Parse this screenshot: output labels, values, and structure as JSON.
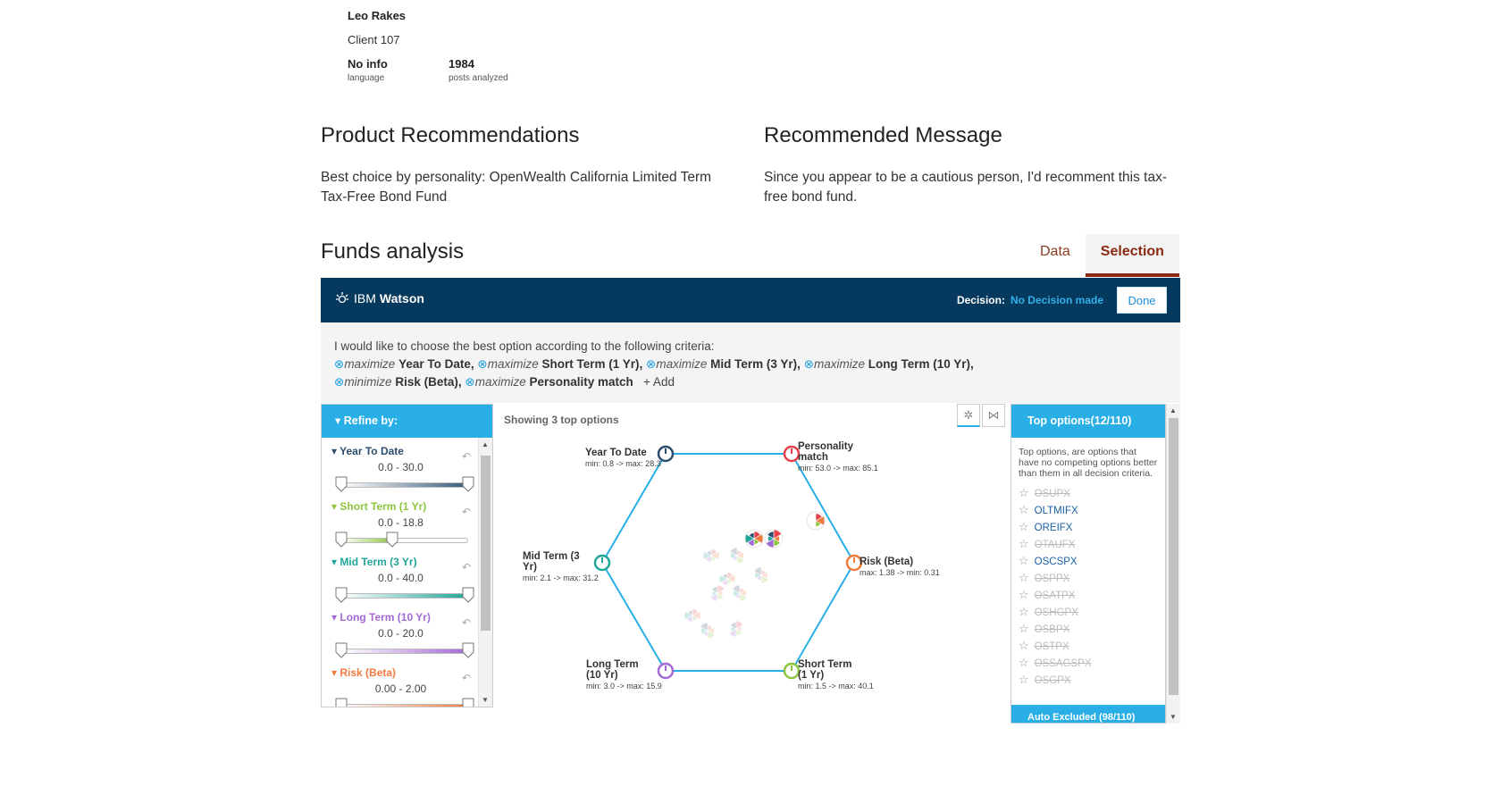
{
  "profile": {
    "name": "Leo Rakes",
    "client": "Client 107",
    "stats": [
      {
        "value": "No info",
        "label": "language"
      },
      {
        "value": "1984",
        "label": "posts analyzed"
      }
    ]
  },
  "product": {
    "title": "Product Recommendations",
    "text": "Best choice by personality: OpenWealth California Limited Term Tax-Free Bond Fund"
  },
  "message": {
    "title": "Recommended Message",
    "text": "Since you appear to be a cautious person, I'd recomment this tax-free bond fund."
  },
  "funds": {
    "title": "Funds analysis",
    "tabs": [
      {
        "label": "Data",
        "active": false
      },
      {
        "label": "Selection",
        "active": true
      }
    ]
  },
  "watson": {
    "logo_ibm": "IBM",
    "logo_watson": "Watson",
    "decision_label": "Decision:",
    "decision_value": "No Decision made",
    "done_label": "Done"
  },
  "criteria": {
    "intro": "I would like to choose the best option according to the following criteria:",
    "x_symbol": "⊗",
    "items": [
      {
        "verb": "maximize",
        "name": "Year To Date,"
      },
      {
        "verb": "maximize",
        "name": "Short Term (1 Yr),"
      },
      {
        "verb": "maximize",
        "name": "Mid Term (3 Yr),"
      },
      {
        "verb": "maximize",
        "name": "Long Term (10 Yr),"
      },
      {
        "verb": "minimize",
        "name": "Risk (Beta),"
      },
      {
        "verb": "maximize",
        "name": "Personality match"
      }
    ],
    "add_label": "+ Add"
  },
  "refine": {
    "title": "Refine by:",
    "sliders": [
      {
        "label": "Year To Date",
        "range": "0.0 - 30.0",
        "color": "#3a5b7a",
        "low": 0.0,
        "high": 1.0
      },
      {
        "label": "Short Term (1 Yr)",
        "range": "0.0 - 18.8",
        "color": "#8cc63f",
        "low": 0.0,
        "high": 0.4
      },
      {
        "label": "Mid Term (3 Yr)",
        "range": "0.0 - 40.0",
        "color": "#21a599",
        "low": 0.0,
        "high": 1.0
      },
      {
        "label": "Long Term (10 Yr)",
        "range": "0.0 - 20.0",
        "color": "#a569d6",
        "low": 0.0,
        "high": 1.0
      },
      {
        "label": "Risk (Beta)",
        "range": "0.00 - 2.00",
        "color": "#f07b3f",
        "low": 0.0,
        "high": 1.0
      }
    ]
  },
  "center": {
    "showing": "Showing 3 top options",
    "axes": [
      {
        "name_lines": [
          "Year To Date"
        ],
        "range": "min: 0.8 -> max: 28.3",
        "color": "#2d4d6d"
      },
      {
        "name_lines": [
          "Personality",
          "match"
        ],
        "range": "min: 53.0 -> max: 85.1",
        "color": "#e6404a"
      },
      {
        "name_lines": [
          "Risk (Beta)"
        ],
        "range": "max: 1.38 -> min: 0.31",
        "color": "#f07b3f"
      },
      {
        "name_lines": [
          "Short Term",
          "(1 Yr)"
        ],
        "range": "min: 1.5 -> max: 40.1",
        "color": "#8cc63f"
      },
      {
        "name_lines": [
          "Long Term",
          "(10 Yr)"
        ],
        "range": "min: 3.0 -> max: 15.9",
        "color": "#a569d6"
      },
      {
        "name_lines": [
          "Mid Term (3",
          "Yr)"
        ],
        "range": "min: 2.1 -> max: 31.2",
        "color": "#21a599"
      }
    ]
  },
  "top_options": {
    "title": "Top options(12/110)",
    "description": "Top options, are options that have no competing options better than them in all decision criteria.",
    "items": [
      {
        "code": "OSUPX",
        "excluded": true
      },
      {
        "code": "OLTMIFX",
        "excluded": false
      },
      {
        "code": "OREIFX",
        "excluded": false
      },
      {
        "code": "OTAUFX",
        "excluded": true
      },
      {
        "code": "OSCSPX",
        "excluded": false
      },
      {
        "code": "OSPPX",
        "excluded": true
      },
      {
        "code": "OSATPX",
        "excluded": true
      },
      {
        "code": "OSHGPX",
        "excluded": true
      },
      {
        "code": "OSBPX",
        "excluded": true
      },
      {
        "code": "OSTPX",
        "excluded": true
      },
      {
        "code": "OSSAGSPX",
        "excluded": true
      },
      {
        "code": "OSGPX",
        "excluded": true
      }
    ],
    "auto_excluded": "Auto Excluded (98/110)"
  }
}
